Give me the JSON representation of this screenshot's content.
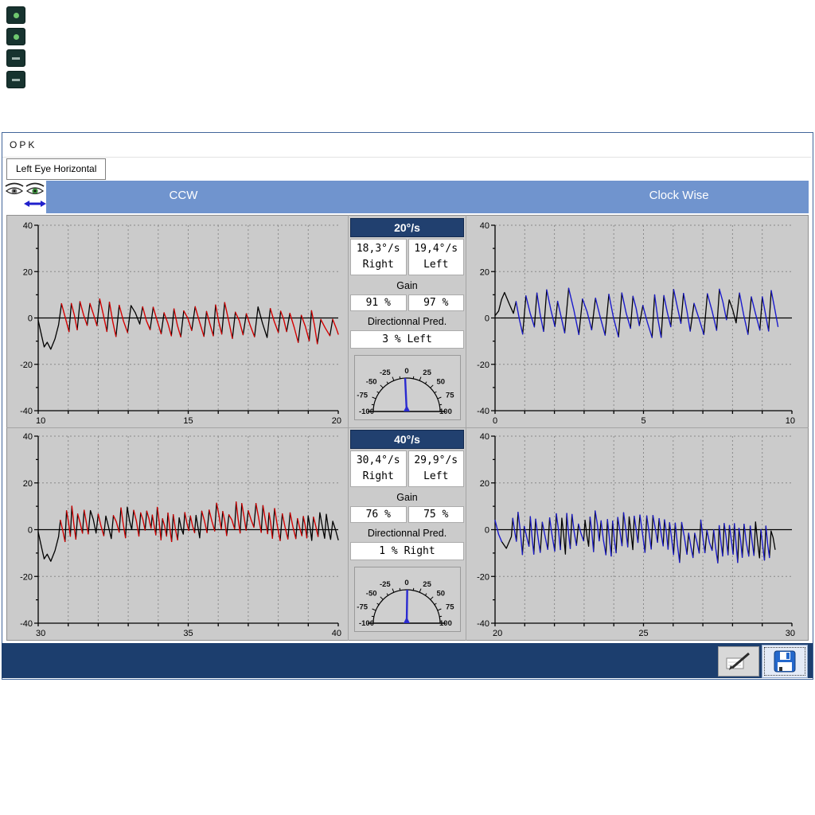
{
  "window": {
    "title": "OPK",
    "tab": "Left Eye Horizontal"
  },
  "stimulus_header": {
    "ccw_label": "CCW",
    "cw_label": "Clock Wise",
    "bar_color": "#7094ce"
  },
  "icons": {
    "app_shortcuts": [
      "app-icon-1",
      "app-icon-2",
      "app-icon-3",
      "app-icon-4"
    ],
    "right_eye": "right-eye-icon",
    "left_eye": "left-eye-icon-active",
    "horizontal_arrow": "horizontal-arrow-icon",
    "edit": "pencil-page-icon",
    "save": "floppy-disk-icon"
  },
  "panels": [
    {
      "speed": "20°/s",
      "right_velocity": "18,3°/s",
      "left_velocity": "19,4°/s",
      "right_label": "Right",
      "left_label": "Left",
      "gain_label": "Gain",
      "gain_right": "91 %",
      "gain_left": "97 %",
      "pred_label": "Directionnal Pred.",
      "pred_value": "3 % Left",
      "gauge": {
        "range": [
          -100,
          100
        ],
        "label_values": [
          0,
          -25,
          25,
          -50,
          50,
          -75,
          75,
          -100,
          100
        ],
        "needle_value": -3,
        "needle_color": "#2a2ad0"
      }
    },
    {
      "speed": "40°/s",
      "right_velocity": "30,4°/s",
      "left_velocity": "29,9°/s",
      "right_label": "Right",
      "left_label": "Left",
      "gain_label": "Gain",
      "gain_right": "76 %",
      "gain_left": "75 %",
      "pred_label": "Directionnal Pred.",
      "pred_value": "1 % Right",
      "gauge": {
        "range": [
          -100,
          100
        ],
        "label_values": [
          0,
          -25,
          25,
          -50,
          50,
          -75,
          75,
          -100,
          100
        ],
        "needle_value": 1,
        "needle_color": "#2a2ad0"
      }
    }
  ],
  "chart_data": [
    {
      "type": "line",
      "name": "ccw-20",
      "position": "top-left",
      "stimulus": "CCW 20°/s",
      "x_range": [
        10,
        20
      ],
      "y_range": [
        -40,
        40
      ],
      "x_tick_labels": [
        "10",
        "15",
        "20"
      ],
      "y_tick_labels": [
        "40",
        "20",
        "0",
        "-20",
        "-40"
      ],
      "grid": "dashed",
      "trace_color": "#d40000",
      "description": "Horizontal nystagmus trace, fast phases highlighted red, ~2.7 beats/s, amplitude about ±8°, initial black artifact dipping to -13° near t=10.5s",
      "beats": 27,
      "amplitude": 6.5,
      "artifact": "dip",
      "seed": 11
    },
    {
      "type": "line",
      "name": "cw-20",
      "position": "top-right",
      "stimulus": "Clock Wise 20°/s",
      "x_range": [
        0,
        10
      ],
      "y_range": [
        -40,
        40
      ],
      "x_tick_labels": [
        "0",
        "5",
        "10"
      ],
      "y_tick_labels": [
        "40",
        "20",
        "0",
        "-20",
        "-40"
      ],
      "grid": "dashed",
      "trace_color": "#1a1acc",
      "description": "Horizontal nystagmus trace, fast phases highlighted blue, ~2.5 beats/s, amplitude about ±10°, initial black artifact rising to +10° near t=0.7s",
      "beats": 24,
      "amplitude": 8.5,
      "artifact": "rise",
      "seed": 23
    },
    {
      "type": "line",
      "name": "ccw-40",
      "position": "bottom-left",
      "stimulus": "CCW 40°/s",
      "x_range": [
        30,
        40
      ],
      "y_range": [
        -40,
        40
      ],
      "x_tick_labels": [
        "30",
        "35",
        "40"
      ],
      "y_tick_labels": [
        "40",
        "20",
        "0",
        "-20",
        "-40"
      ],
      "grid": "dashed",
      "trace_color": "#d40000",
      "description": "Denser nystagmus trace (~4.5 beats/s), fast phases red, amplitude about ±7°, initial black artifact dipping to -10° near t=30.5s",
      "beats": 44,
      "amplitude": 6,
      "artifact": "dip",
      "seed": 37
    },
    {
      "type": "line",
      "name": "cw-40",
      "position": "bottom-right",
      "stimulus": "Clock Wise 40°/s",
      "x_range": [
        20,
        30
      ],
      "y_range": [
        -40,
        40
      ],
      "x_tick_labels": [
        "20",
        "25",
        "30"
      ],
      "y_tick_labels": [
        "40",
        "20",
        "0",
        "-20",
        "-40"
      ],
      "grid": "dashed",
      "trace_color": "#1a1acc",
      "description": "Dense nystagmus trace (~4.6 beats/s), fast phases blue, amplitude about ±9°, small red artifact hook at t=20.2s",
      "beats": 46,
      "amplitude": 7.5,
      "artifact": "dip-red",
      "seed": 51
    }
  ],
  "footer": {
    "bar_color": "#1c3e6e",
    "buttons": [
      {
        "name": "edit-report"
      },
      {
        "name": "save",
        "focused": true
      }
    ]
  }
}
